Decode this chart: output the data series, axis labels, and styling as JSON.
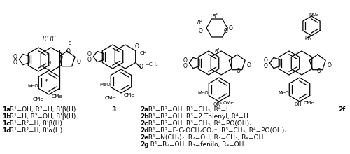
{
  "bg_color": "#ffffff",
  "legend_lines": [
    {
      "bold": "1a",
      "text": " R¹=OH, R²=H, 8’β(H)"
    },
    {
      "bold": "1b",
      "text": " R¹=H, R²=OH, 8’β(H)"
    },
    {
      "bold": "1c",
      "text": " R¹=R²=H, 8’β(H)"
    },
    {
      "bold": "1d",
      "text": " R¹=R²=H, 8’α(H)"
    }
  ],
  "legend2_lines": [
    {
      "bold": "2a",
      "text": " R¹=R²=OH, R³=CH₃, R⁴=H"
    },
    {
      "bold": "2b",
      "text": " R¹=R²=OH, R³=2·Thienyl, R⁴=H"
    },
    {
      "bold": "2c",
      "text": " R¹=R²=OH, R³=CH₃, R⁴=PO(OH)₂"
    },
    {
      "bold": "2d",
      "text": " R¹=R²=F₅C₆OCH₂CO₂⁻, R³=CH₃, R⁴=PO(OH)₂"
    },
    {
      "bold": "2e",
      "text": " R¹=N(CH₃)₂, R₂=OH, R₃=CH₃, R₄=OH"
    },
    {
      "bold": "2g",
      "text": "  R¹=R₂=OH, R₃=fenilo, R₄=OH"
    }
  ],
  "label3": "3",
  "label2f": "2f"
}
